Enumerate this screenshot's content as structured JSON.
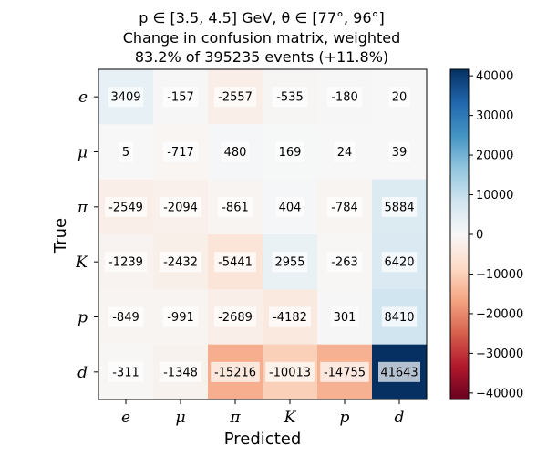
{
  "chart_data": {
    "type": "heatmap",
    "title_lines": [
      "p ∈ [3.5, 4.5] GeV, θ ∈ [77°, 96°]",
      "Change in confusion matrix, weighted",
      "83.2% of 395235 events (+11.8%)"
    ],
    "xlabel": "Predicted",
    "ylabel": "True",
    "x_categories": [
      "e",
      "μ",
      "π",
      "K",
      "p",
      "d"
    ],
    "y_categories": [
      "e",
      "μ",
      "π",
      "K",
      "p",
      "d"
    ],
    "values": [
      [
        3409,
        -157,
        -2557,
        -535,
        -180,
        20
      ],
      [
        5,
        -717,
        480,
        169,
        24,
        39
      ],
      [
        -2549,
        -2094,
        -861,
        404,
        -784,
        5884
      ],
      [
        -1239,
        -2432,
        -5441,
        2955,
        -263,
        6420
      ],
      [
        -849,
        -991,
        -2689,
        -4182,
        301,
        8410
      ],
      [
        -311,
        -1348,
        -15216,
        -10013,
        -14755,
        41643
      ]
    ],
    "colorbar": {
      "colormap": "RdBu",
      "vmin": -41643,
      "vmax": 41643,
      "ticks": [
        40000,
        30000,
        20000,
        10000,
        0,
        -10000,
        -20000,
        -30000,
        -40000
      ],
      "tick_labels": [
        "40000",
        "30000",
        "20000",
        "10000",
        "0",
        "−10000",
        "−20000",
        "−30000",
        "−40000"
      ]
    }
  }
}
